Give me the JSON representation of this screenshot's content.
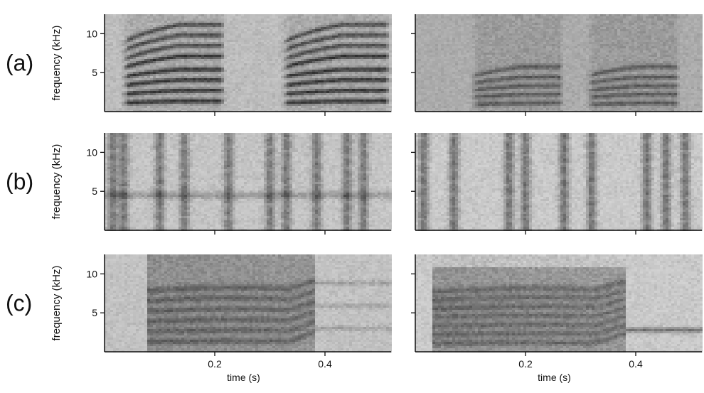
{
  "figure": {
    "row_labels": [
      "(a)",
      "(b)",
      "(c)"
    ],
    "ylabel": "frequency (kHz)",
    "xlabel": "time (s)"
  },
  "chart_data": [
    {
      "type": "heatmap",
      "panel": "a-left",
      "row_label": "(a)",
      "ylabel": "frequency (kHz)",
      "xlabel": "",
      "xlim": [
        0,
        0.52
      ],
      "ylim": [
        0,
        12.5
      ],
      "yticks": [
        5,
        10
      ],
      "xticks": [
        0.2,
        0.4
      ],
      "show_xtick_labels": false,
      "grid": false,
      "content": "harmonic",
      "segments": [
        [
          0.03,
          0.22
        ],
        [
          0.32,
          0.52
        ]
      ],
      "f0": 1.35,
      "harmonics": 8,
      "rise": 1.2,
      "intensity": 0.8,
      "bg": 0.75
    },
    {
      "type": "heatmap",
      "panel": "a-right",
      "ylabel": "",
      "xlabel": "",
      "xlim": [
        0,
        0.52
      ],
      "ylim": [
        0,
        12.5
      ],
      "yticks": [
        5,
        10
      ],
      "xticks": [
        0.2,
        0.4
      ],
      "show_ytick_labels": false,
      "show_xtick_labels": false,
      "grid": false,
      "content": "harmonic",
      "segments": [
        [
          0.1,
          0.27
        ],
        [
          0.31,
          0.48
        ]
      ],
      "f0": 1.1,
      "harmonics": 5,
      "rise": 0.8,
      "intensity": 0.5,
      "bg": 0.68
    },
    {
      "type": "heatmap",
      "panel": "b-left",
      "row_label": "(b)",
      "ylabel": "frequency (kHz)",
      "xlabel": "",
      "xlim": [
        0,
        0.52
      ],
      "ylim": [
        0,
        12.5
      ],
      "yticks": [
        5,
        10
      ],
      "xticks": [
        0.2,
        0.4
      ],
      "show_xtick_labels": false,
      "grid": false,
      "content": "pulses",
      "pulses": [
        0.015,
        0.035,
        0.1,
        0.145,
        0.225,
        0.3,
        0.33,
        0.385,
        0.44,
        0.47
      ],
      "hband": 4.5,
      "intensity": 0.55,
      "bg": 0.78
    },
    {
      "type": "heatmap",
      "panel": "b-right",
      "ylabel": "",
      "xlabel": "",
      "xlim": [
        0,
        0.52
      ],
      "ylim": [
        0,
        12.5
      ],
      "yticks": [
        5,
        10
      ],
      "xticks": [
        0.2,
        0.4
      ],
      "show_ytick_labels": false,
      "show_xtick_labels": false,
      "grid": false,
      "content": "pulses",
      "pulses": [
        0.015,
        0.07,
        0.17,
        0.2,
        0.27,
        0.32,
        0.42,
        0.455,
        0.49
      ],
      "intensity": 0.6,
      "bg": 0.8
    },
    {
      "type": "heatmap",
      "panel": "c-left",
      "row_label": "(c)",
      "ylabel": "frequency (kHz)",
      "xlabel": "time (s)",
      "xlim": [
        0,
        0.52
      ],
      "ylim": [
        0,
        12.5
      ],
      "yticks": [
        5,
        10
      ],
      "xticks": [
        0.2,
        0.4
      ],
      "grid": false,
      "content": "broadband",
      "segments": [
        [
          0.078,
          0.38
        ]
      ],
      "f0": 1.3,
      "harmonics": 6,
      "intensity": 0.55,
      "bg": 0.77
    },
    {
      "type": "heatmap",
      "panel": "c-right",
      "ylabel": "",
      "xlabel": "time (s)",
      "xlim": [
        0,
        0.52
      ],
      "ylim": [
        0,
        12.5
      ],
      "yticks": [
        5,
        10
      ],
      "xticks": [
        0.2,
        0.4
      ],
      "show_ytick_labels": false,
      "grid": false,
      "content": "broadband",
      "segments": [
        [
          0.03,
          0.38
        ]
      ],
      "f0": 1.1,
      "harmonics": 7,
      "tail": [
        0.38,
        0.52,
        2.8
      ],
      "intensity": 0.5,
      "bg": 0.8
    }
  ]
}
